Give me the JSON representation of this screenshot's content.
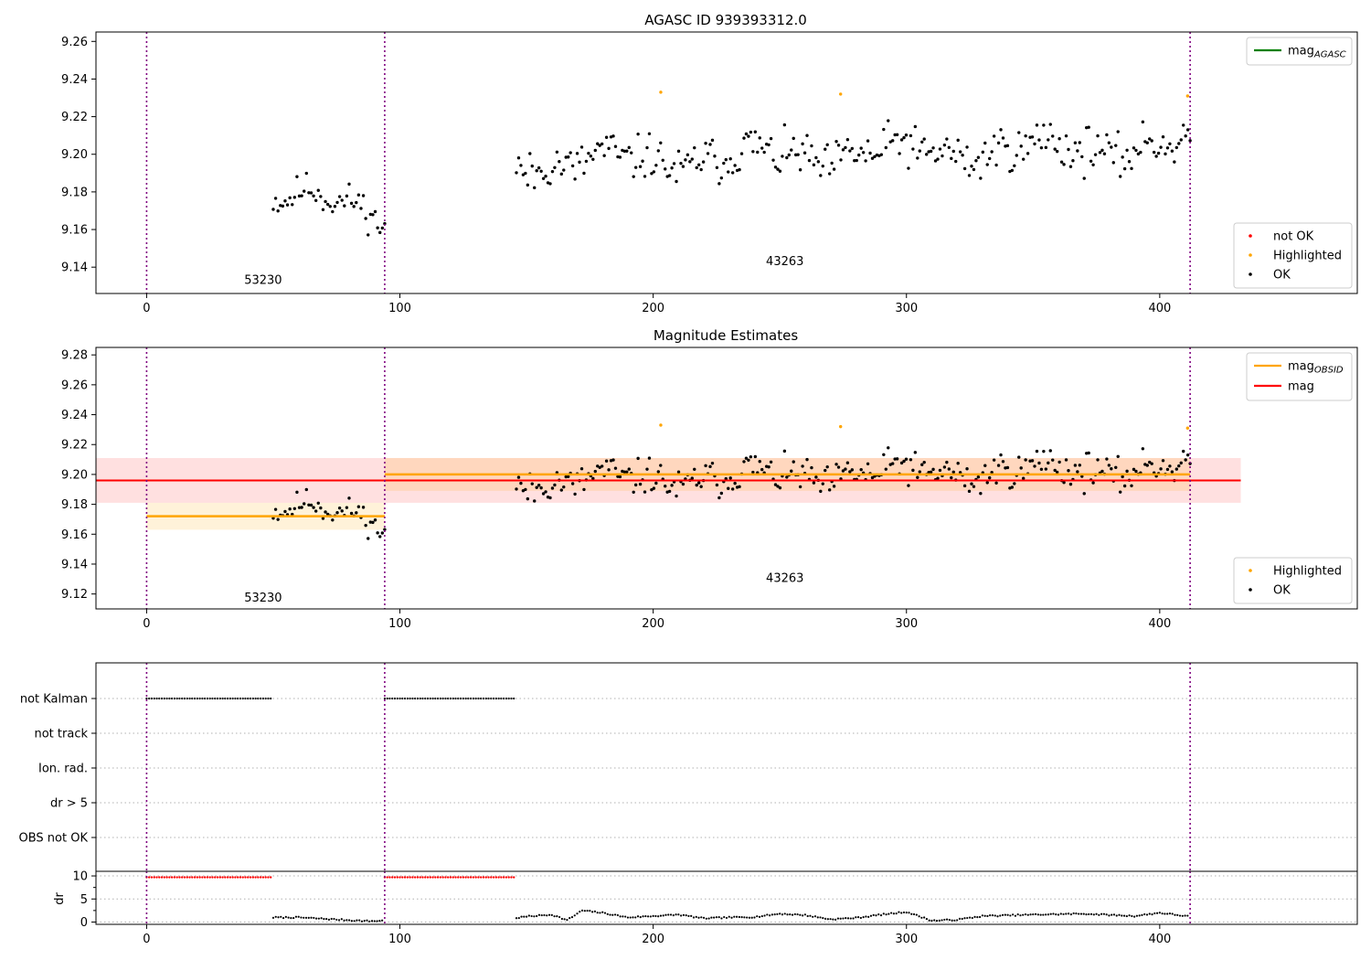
{
  "chart_data": [
    {
      "type": "scatter",
      "title": "AGASC ID 939393312.0",
      "xlim": [
        -20,
        478
      ],
      "ylim": [
        9.126,
        9.265
      ],
      "yticks": [
        9.14,
        9.16,
        9.18,
        9.2,
        9.22,
        9.24,
        9.26
      ],
      "xticks": [
        0,
        100,
        200,
        300,
        400
      ],
      "grid": false,
      "obs_boundaries": [
        0,
        94,
        412
      ],
      "obs_labels": [
        {
          "text": "53230",
          "x": 46,
          "y": 9.131
        },
        {
          "text": "43263",
          "x": 252,
          "y": 9.141
        }
      ],
      "line_legend": {
        "location": "top-right",
        "entries": [
          {
            "label": "mag",
            "sub": "AGASC",
            "color": "#008000"
          }
        ]
      },
      "marker_legend": {
        "location": "bottom-right",
        "entries": [
          {
            "label": "not OK",
            "color": "#ff0000"
          },
          {
            "label": "Highlighted",
            "color": "#ffa500"
          },
          {
            "label": "OK",
            "color": "#000000"
          }
        ]
      },
      "series": [
        {
          "name": "OK",
          "color": "#000000",
          "style": "points-seeded",
          "seed": 11,
          "segments": [
            {
              "x0": 50,
              "x1": 94,
              "n": 48,
              "y_start": 9.18,
              "y_end": 9.168,
              "noise": 0.008
            },
            {
              "x0": 146,
              "x1": 412,
              "n": 300,
              "y_start": 9.195,
              "y_end": 9.205,
              "noise": 0.011
            }
          ]
        },
        {
          "name": "Highlighted",
          "color": "#ffa500",
          "x": [
            203,
            274,
            411
          ],
          "y": [
            9.233,
            9.232,
            9.231
          ]
        }
      ]
    },
    {
      "type": "scatter",
      "title": "Magnitude Estimates",
      "xlim": [
        -20,
        478
      ],
      "ylim": [
        9.11,
        9.285
      ],
      "yticks": [
        9.12,
        9.14,
        9.16,
        9.18,
        9.2,
        9.22,
        9.24,
        9.26,
        9.28
      ],
      "xticks": [
        0,
        100,
        200,
        300,
        400
      ],
      "grid": false,
      "obs_boundaries": [
        0,
        94,
        412
      ],
      "obs_labels": [
        {
          "text": "53230",
          "x": 46,
          "y": 9.115
        },
        {
          "text": "43263",
          "x": 252,
          "y": 9.128
        }
      ],
      "line_legend": {
        "location": "top-right",
        "entries": [
          {
            "label": "mag",
            "sub": "OBSID",
            "color": "#ffa500"
          },
          {
            "label": "mag",
            "sub": "",
            "color": "#ff0000"
          }
        ]
      },
      "marker_legend": {
        "location": "bottom-right",
        "entries": [
          {
            "label": "Highlighted",
            "color": "#ffa500"
          },
          {
            "label": "OK",
            "color": "#000000"
          }
        ]
      },
      "mag_line": {
        "x0": -20,
        "x1": 432,
        "y": 9.196,
        "band": [
          9.181,
          9.211
        ],
        "color": "#ff0000"
      },
      "obsid_lines": [
        {
          "x0": 0,
          "x1": 94,
          "y": 9.172,
          "band": [
            9.163,
            9.181
          ]
        },
        {
          "x0": 94,
          "x1": 412,
          "y": 9.2,
          "band": [
            9.189,
            9.211
          ]
        }
      ],
      "series": [
        {
          "name": "OK",
          "color": "#000000",
          "style": "points-seeded",
          "seed": 11,
          "segments": [
            {
              "x0": 50,
              "x1": 94,
              "n": 48,
              "y_start": 9.18,
              "y_end": 9.168,
              "noise": 0.008
            },
            {
              "x0": 146,
              "x1": 412,
              "n": 300,
              "y_start": 9.195,
              "y_end": 9.205,
              "noise": 0.011
            }
          ]
        },
        {
          "name": "Highlighted",
          "color": "#ffa500",
          "x": [
            203,
            274,
            411
          ],
          "y": [
            9.233,
            9.232,
            9.231
          ]
        }
      ]
    },
    {
      "type": "scatter",
      "title": "",
      "xlim": [
        -20,
        478
      ],
      "flag_labels": [
        "not Kalman",
        "not track",
        "Ion. rad.",
        "dr > 5",
        "OBS not OK"
      ],
      "obs_boundaries": [
        0,
        94,
        412
      ],
      "flags": [
        {
          "label": "not Kalman",
          "ranges": [
            [
              0,
              49
            ],
            [
              94,
              145
            ]
          ]
        },
        {
          "label": "not track",
          "ranges": []
        },
        {
          "label": "Ion. rad.",
          "ranges": []
        },
        {
          "label": "dr > 5",
          "ranges": []
        },
        {
          "label": "OBS not OK",
          "ranges": []
        }
      ],
      "dr": {
        "ylabel": "dr",
        "ylim": [
          -0.5,
          11
        ],
        "yticks": [
          0,
          5,
          10
        ],
        "capped_value": 9.7,
        "capped_ranges": [
          [
            0,
            49
          ],
          [
            94,
            145
          ]
        ],
        "profile_x": [
          50,
          60,
          70,
          80,
          88,
          94,
          146,
          150,
          160,
          166,
          172,
          180,
          190,
          200,
          210,
          220,
          230,
          240,
          250,
          260,
          270,
          280,
          290,
          300,
          310,
          320,
          330,
          350,
          370,
          390,
          400,
          412
        ],
        "profile_y": [
          1.0,
          1.0,
          0.7,
          0.4,
          0.2,
          0.3,
          0.9,
          1.2,
          1.6,
          0.4,
          2.5,
          2.0,
          1.0,
          1.3,
          1.6,
          0.8,
          1.0,
          1.1,
          1.8,
          1.5,
          0.6,
          0.9,
          1.6,
          2.2,
          0.3,
          0.5,
          1.3,
          1.6,
          1.8,
          1.3,
          2.0,
          1.2
        ]
      }
    }
  ]
}
